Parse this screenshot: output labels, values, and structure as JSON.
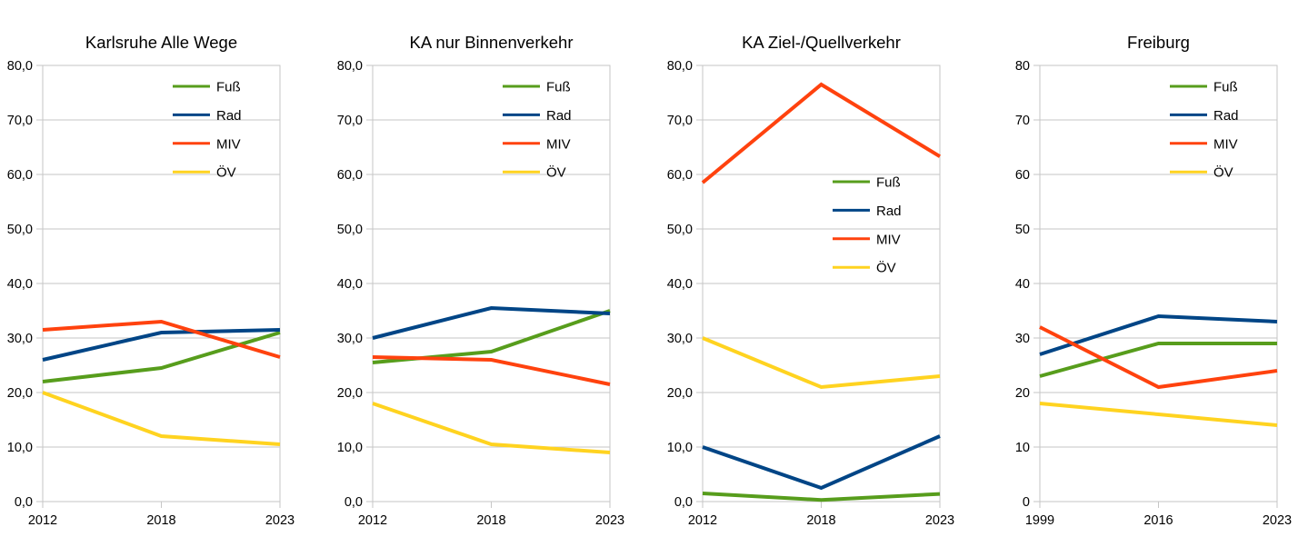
{
  "colors": {
    "fuss": "#579D1C",
    "rad": "#004586",
    "miv": "#FF420E",
    "oev": "#FFD320",
    "grid": "#C6C6C6",
    "text": "#000000",
    "background": "#FFFFFF"
  },
  "chart_data": [
    {
      "type": "line",
      "title": "Karlsruhe Alle Wege",
      "categories": [
        "2012",
        "2018",
        "2023"
      ],
      "series": [
        {
          "name": "Fuß",
          "color_key": "fuss",
          "values": [
            22,
            24.5,
            31
          ]
        },
        {
          "name": "Rad",
          "color_key": "rad",
          "values": [
            26,
            31,
            31.5
          ]
        },
        {
          "name": "MIV",
          "color_key": "miv",
          "values": [
            31.5,
            33,
            26.5
          ]
        },
        {
          "name": "ÖV",
          "color_key": "oev",
          "values": [
            20,
            12,
            10.5
          ]
        }
      ],
      "ylim": [
        0,
        80
      ],
      "ytick_step": 10,
      "ytick_format": "decimal_comma",
      "grid": true,
      "legend_position": "top-right"
    },
    {
      "type": "line",
      "title": "KA nur Binnenverkehr",
      "categories": [
        "2012",
        "2018",
        "2023"
      ],
      "series": [
        {
          "name": "Fuß",
          "color_key": "fuss",
          "values": [
            25.5,
            27.5,
            35
          ]
        },
        {
          "name": "Rad",
          "color_key": "rad",
          "values": [
            30,
            35.5,
            34.5
          ]
        },
        {
          "name": "MIV",
          "color_key": "miv",
          "values": [
            26.5,
            26,
            21.5
          ]
        },
        {
          "name": "ÖV",
          "color_key": "oev",
          "values": [
            18,
            10.5,
            9
          ]
        }
      ],
      "ylim": [
        0,
        80
      ],
      "ytick_step": 10,
      "ytick_format": "decimal_comma",
      "grid": true,
      "legend_position": "top-right"
    },
    {
      "type": "line",
      "title": "KA Ziel-/Quellverkehr",
      "categories": [
        "2012",
        "2018",
        "2023"
      ],
      "series": [
        {
          "name": "Fuß",
          "color_key": "fuss",
          "values": [
            1.5,
            0.3,
            1.4
          ]
        },
        {
          "name": "Rad",
          "color_key": "rad",
          "values": [
            10,
            2.5,
            12
          ]
        },
        {
          "name": "MIV",
          "color_key": "miv",
          "values": [
            58.5,
            76.5,
            63.3
          ]
        },
        {
          "name": "ÖV",
          "color_key": "oev",
          "values": [
            30,
            21,
            23
          ]
        }
      ],
      "ylim": [
        0,
        80
      ],
      "ytick_step": 10,
      "ytick_format": "decimal_comma",
      "grid": true,
      "legend_position": "middle-right"
    },
    {
      "type": "line",
      "title": "Freiburg",
      "categories": [
        "1999",
        "2016",
        "2023"
      ],
      "series": [
        {
          "name": "Fuß",
          "color_key": "fuss",
          "values": [
            23,
            29,
            29
          ]
        },
        {
          "name": "Rad",
          "color_key": "rad",
          "values": [
            27,
            34,
            33
          ]
        },
        {
          "name": "MIV",
          "color_key": "miv",
          "values": [
            32,
            21,
            24
          ]
        },
        {
          "name": "ÖV",
          "color_key": "oev",
          "values": [
            18,
            16,
            14
          ]
        }
      ],
      "ylim": [
        0,
        80
      ],
      "ytick_step": 10,
      "ytick_format": "integer",
      "grid": true,
      "legend_position": "top-right"
    }
  ]
}
